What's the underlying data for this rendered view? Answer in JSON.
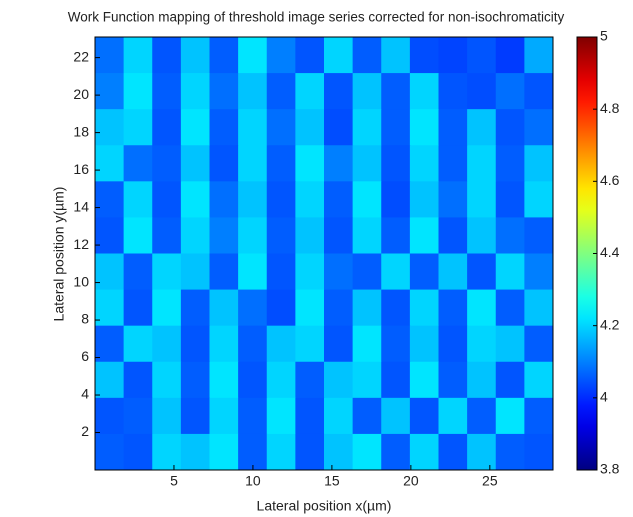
{
  "chart_data": {
    "type": "heatmap",
    "title": "Work Function mapping of threshold image series corrected for non-isochromaticity",
    "x_label": "Lateral position x(µm)",
    "y_label": "Lateral position y(µm)",
    "xlim": [
      0,
      29
    ],
    "ylim": [
      0,
      23.1
    ],
    "xticks": [
      5,
      10,
      15,
      20,
      25
    ],
    "yticks": [
      2,
      4,
      6,
      8,
      10,
      12,
      14,
      16,
      18,
      20,
      22
    ],
    "clim": [
      3.8,
      5
    ],
    "cticks": [
      3.8,
      4,
      4.2,
      4.4,
      4.6,
      4.8,
      5
    ],
    "colormap": "jet",
    "z": [
      [
        4.08,
        4.2,
        4.05,
        4.18,
        4.06,
        4.22,
        4.1,
        4.05,
        4.2,
        4.06,
        4.18,
        4.04,
        4.03,
        4.05,
        4.02,
        4.15
      ],
      [
        4.1,
        4.22,
        4.06,
        4.2,
        4.08,
        4.18,
        4.06,
        4.2,
        4.05,
        4.18,
        4.06,
        4.2,
        4.05,
        4.04,
        4.08,
        4.05
      ],
      [
        4.18,
        4.2,
        4.05,
        4.22,
        4.06,
        4.2,
        4.08,
        4.18,
        4.04,
        4.2,
        4.06,
        4.22,
        4.06,
        4.18,
        4.05,
        4.08
      ],
      [
        4.2,
        4.08,
        4.06,
        4.18,
        4.05,
        4.2,
        4.06,
        4.22,
        4.1,
        4.18,
        4.05,
        4.2,
        4.06,
        4.2,
        4.06,
        4.18
      ],
      [
        4.06,
        4.2,
        4.05,
        4.22,
        4.08,
        4.18,
        4.05,
        4.2,
        4.06,
        4.22,
        4.04,
        4.18,
        4.08,
        4.2,
        4.05,
        4.2
      ],
      [
        4.05,
        4.22,
        4.06,
        4.2,
        4.1,
        4.2,
        4.06,
        4.18,
        4.05,
        4.2,
        4.06,
        4.22,
        4.05,
        4.18,
        4.08,
        4.06
      ],
      [
        4.18,
        4.06,
        4.2,
        4.18,
        4.06,
        4.22,
        4.05,
        4.2,
        4.08,
        4.06,
        4.2,
        4.06,
        4.18,
        4.05,
        4.2,
        4.1
      ],
      [
        4.2,
        4.05,
        4.22,
        4.06,
        4.18,
        4.08,
        4.04,
        4.22,
        4.06,
        4.18,
        4.05,
        4.2,
        4.06,
        4.22,
        4.06,
        4.18
      ],
      [
        4.06,
        4.2,
        4.18,
        4.05,
        4.2,
        4.06,
        4.18,
        4.2,
        4.05,
        4.22,
        4.06,
        4.18,
        4.05,
        4.2,
        4.18,
        4.06
      ],
      [
        4.18,
        4.05,
        4.2,
        4.06,
        4.22,
        4.05,
        4.2,
        4.06,
        4.18,
        4.2,
        4.05,
        4.22,
        4.06,
        4.18,
        4.05,
        4.2
      ],
      [
        4.05,
        4.06,
        4.18,
        4.05,
        4.2,
        4.06,
        4.22,
        4.05,
        4.2,
        4.06,
        4.18,
        4.05,
        4.2,
        4.06,
        4.22,
        4.06
      ],
      [
        4.06,
        4.05,
        4.2,
        4.18,
        4.22,
        4.06,
        4.2,
        4.05,
        4.18,
        4.22,
        4.06,
        4.2,
        4.05,
        4.18,
        4.06,
        4.05
      ]
    ]
  }
}
